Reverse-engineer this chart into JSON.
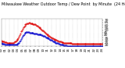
{
  "title": "Milwaukee Weather Outdoor Temp / Dew Point  by Minute  (24 Hours) (Alternate)",
  "title_fontsize": 3.5,
  "bg_color": "#ffffff",
  "plot_bg_color": "#ffffff",
  "grid_color": "#aaaaaa",
  "temp_color": "#dd0000",
  "dew_color": "#0000cc",
  "ylabel_color": "#000000",
  "ylabel_fontsize": 3.2,
  "xlabel_fontsize": 2.8,
  "ylim": [
    18,
    72
  ],
  "yticks": [
    20,
    25,
    30,
    35,
    40,
    45,
    50,
    55,
    60,
    65,
    70
  ],
  "xlim": [
    0,
    144
  ],
  "temp_data": [
    29,
    28,
    28,
    27,
    27,
    26,
    26,
    26,
    25,
    25,
    25,
    25,
    25,
    25,
    25,
    25,
    25,
    25,
    26,
    27,
    28,
    29,
    30,
    32,
    34,
    37,
    40,
    43,
    47,
    50,
    53,
    55,
    57,
    59,
    61,
    62,
    63,
    64,
    64,
    65,
    65,
    64,
    64,
    63,
    63,
    62,
    62,
    61,
    61,
    60,
    59,
    58,
    57,
    56,
    55,
    54,
    53,
    51,
    50,
    49,
    47,
    46,
    44,
    43,
    42,
    41,
    40,
    39,
    38,
    37,
    36,
    35,
    34,
    33,
    32,
    32,
    31,
    30,
    30,
    29,
    29,
    28,
    28,
    27,
    27,
    26,
    26,
    26,
    25,
    25,
    25,
    25,
    25,
    24,
    24,
    24,
    24,
    24,
    24,
    24,
    23,
    23,
    23,
    23,
    23,
    23,
    23,
    23,
    23,
    23,
    23,
    23,
    23,
    23,
    23,
    23,
    23,
    23,
    23,
    23,
    23,
    23,
    23,
    23,
    23,
    23,
    23,
    23,
    23,
    23,
    23,
    23,
    23,
    23,
    23,
    23,
    23,
    23,
    23,
    23,
    23,
    23,
    23,
    23
  ],
  "dew_data": [
    24,
    23,
    23,
    23,
    23,
    22,
    22,
    22,
    22,
    22,
    22,
    22,
    22,
    21,
    21,
    21,
    21,
    21,
    21,
    21,
    21,
    22,
    22,
    23,
    24,
    25,
    27,
    29,
    32,
    35,
    38,
    40,
    42,
    44,
    45,
    46,
    46,
    46,
    46,
    46,
    45,
    44,
    44,
    44,
    44,
    44,
    43,
    43,
    43,
    43,
    43,
    42,
    42,
    42,
    42,
    41,
    41,
    40,
    40,
    39,
    39,
    38,
    37,
    36,
    35,
    35,
    34,
    33,
    32,
    31,
    30,
    30,
    29,
    28,
    27,
    27,
    26,
    25,
    25,
    24,
    24,
    23,
    23,
    22,
    22,
    22,
    21,
    21,
    20,
    20,
    20,
    20,
    20,
    19,
    19,
    19,
    19,
    19,
    19,
    19,
    19,
    19,
    19,
    19,
    19,
    19,
    19,
    19,
    19,
    19,
    19,
    19,
    19,
    18,
    18,
    18,
    18,
    18,
    18,
    18,
    18,
    18,
    18,
    18,
    18,
    18,
    18,
    18,
    18,
    18,
    18,
    18,
    18,
    18,
    18,
    18,
    18,
    18,
    18,
    18,
    18,
    18,
    18,
    18
  ],
  "num_points": 144,
  "xtick_count": 25
}
